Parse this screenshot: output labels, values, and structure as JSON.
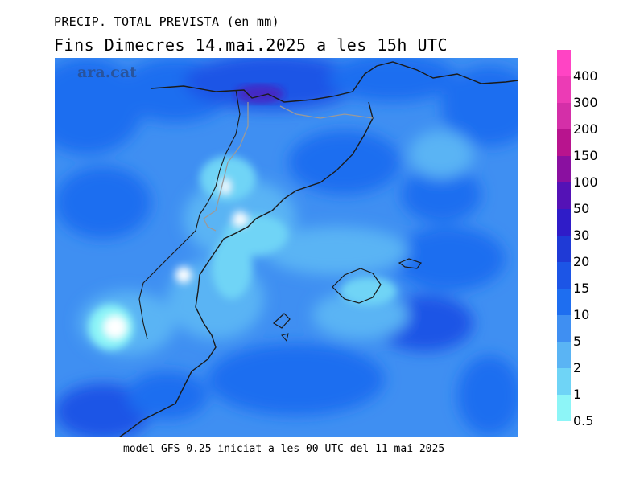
{
  "title_line1": "PRECIP. TOTAL PREVISTA (en mm)",
  "title_line2": "Fins Dimecres  14.mai.2025 a les 15h UTC",
  "watermark": "ara.cat",
  "footer": "model GFS 0.25 iniciat a les 00 UTC del 11 mai 2025",
  "legend": {
    "labels": [
      "400",
      "300",
      "200",
      "150",
      "100",
      "50",
      "30",
      "20",
      "15",
      "10",
      "5",
      "2",
      "1",
      "0.5"
    ],
    "colors": [
      "#ff44c4",
      "#ec3bb5",
      "#d42fa8",
      "#b8148e",
      "#8a10a0",
      "#5412b6",
      "#2f1cc8",
      "#1f3ad6",
      "#1c55e6",
      "#1e6ef0",
      "#3f8ff2",
      "#5ab4f4",
      "#6fd4f6",
      "#8df5f7"
    ]
  },
  "map": {
    "base_color": "#3f8ff2",
    "coast_color": "#1a1a1a",
    "border_color": "#9a9a9a"
  }
}
